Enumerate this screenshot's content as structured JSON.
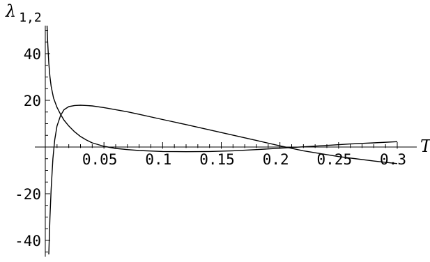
{
  "chart_data": {
    "type": "line",
    "xlabel": "T",
    "ylabel": "λ",
    "ylabel_subscript": "1,2",
    "xlim": [
      0,
      0.3
    ],
    "ylim": [
      -47,
      52
    ],
    "grid": false,
    "legend": "none",
    "x_ticks": [
      0.05,
      0.1,
      0.15,
      0.2,
      0.25,
      0.3
    ],
    "x_tick_labels": [
      "0.05",
      "0.1",
      "0.15",
      "0.2",
      "0.25",
      "0.3"
    ],
    "y_ticks": [
      40,
      20,
      -20,
      -40
    ],
    "y_tick_labels": [
      "40",
      "20",
      "-20",
      "-40"
    ],
    "series": [
      {
        "x": [
          0.003,
          0.004,
          0.005,
          0.0065,
          0.008,
          0.01,
          0.013,
          0.016,
          0.02,
          0.025,
          0.03,
          0.035,
          0.04,
          0.05,
          0.06,
          0.07,
          0.08,
          0.1,
          0.12,
          0.15,
          0.18,
          0.2,
          0.22,
          0.25,
          0.28,
          0.3
        ],
        "y": [
          -46,
          -30,
          -18,
          -5,
          3,
          9,
          13.5,
          16,
          17.3,
          17.8,
          17.9,
          17.8,
          17.6,
          16.9,
          16.0,
          15.1,
          14.0,
          11.8,
          9.6,
          6.2,
          2.8,
          0.5,
          -1.6,
          -4.1,
          -6.0,
          -7.1
        ],
        "color": "#000000"
      },
      {
        "x": [
          0.0015,
          0.002,
          0.003,
          0.004,
          0.005,
          0.007,
          0.01,
          0.013,
          0.016,
          0.02,
          0.025,
          0.03,
          0.035,
          0.04,
          0.05,
          0.06,
          0.07,
          0.08,
          0.1,
          0.12,
          0.14,
          0.16,
          0.18,
          0.2,
          0.22,
          0.24,
          0.26,
          0.28,
          0.3
        ],
        "y": [
          52,
          45,
          36,
          30,
          26,
          21,
          17,
          14,
          11.5,
          9,
          6.5,
          4.5,
          3,
          1.8,
          0.3,
          -0.6,
          -1.1,
          -1.5,
          -1.9,
          -2.0,
          -1.9,
          -1.6,
          -1.1,
          -0.5,
          0.1,
          0.7,
          1.3,
          1.8,
          2.3
        ],
        "color": "#000000"
      }
    ]
  }
}
